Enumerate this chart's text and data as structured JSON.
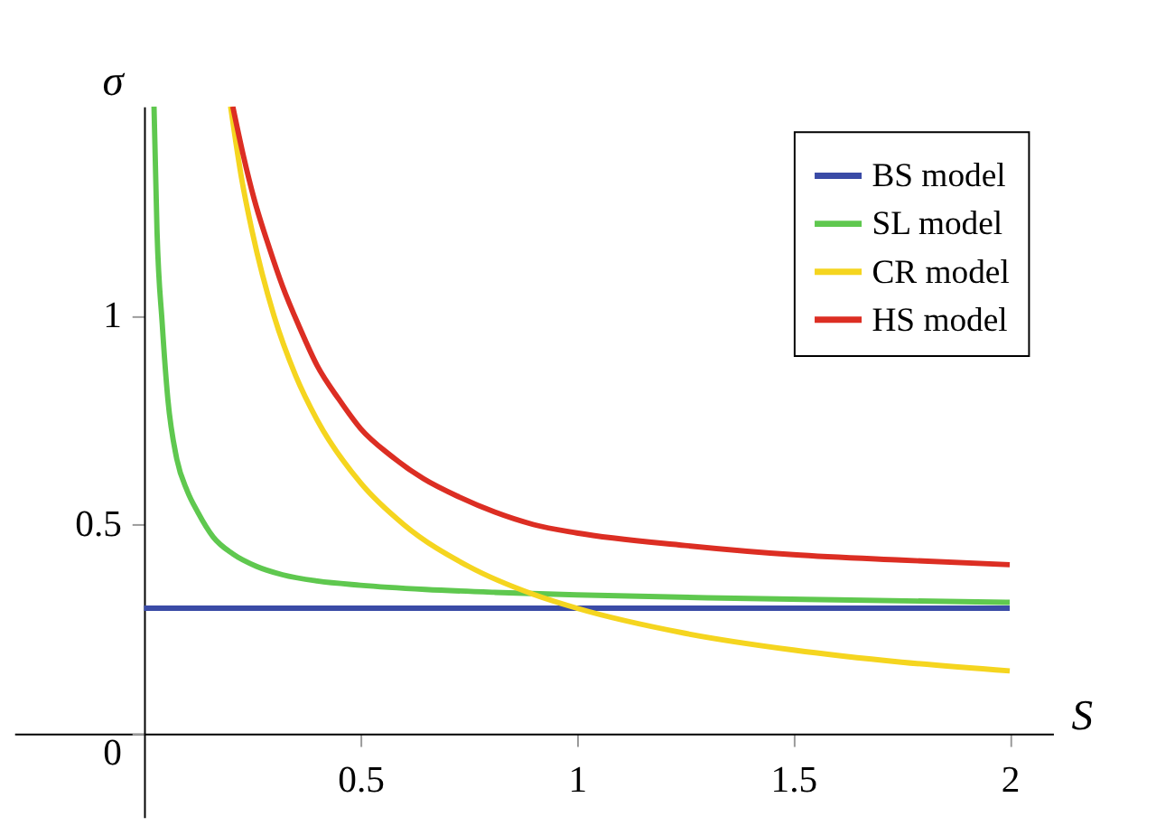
{
  "chart_data": {
    "type": "line",
    "xlabel": "S",
    "ylabel": "σ",
    "xlim": [
      -0.3,
      2.1
    ],
    "ylim": [
      -0.2,
      1.5
    ],
    "xticks": [
      0.5,
      1,
      1.5,
      2
    ],
    "yticks": [
      {
        "value": 0,
        "label": "0"
      },
      0.5,
      1
    ],
    "grid": false,
    "legend": "top right",
    "line_style": "solid",
    "marker": "none",
    "series": [
      {
        "name": "BS model",
        "color": "#3a4ba6",
        "x": [
          0,
          2
        ],
        "values": [
          0.3,
          0.3
        ]
      },
      {
        "name": "SL model",
        "color": "#5fc84f",
        "x": [
          0.023,
          0.03,
          0.042,
          0.055,
          0.075,
          0.1,
          0.124,
          0.16,
          0.205,
          0.26,
          0.32,
          0.4,
          0.5,
          0.65,
          0.81,
          1,
          1.3,
          1.6,
          2
        ],
        "values": [
          1.5,
          1.2,
          0.98,
          0.8,
          0.66,
          0.58,
          0.53,
          0.47,
          0.43,
          0.4,
          0.38,
          0.365,
          0.355,
          0.345,
          0.338,
          0.332,
          0.325,
          0.32,
          0.314
        ]
      },
      {
        "name": "CR model",
        "color": "#f5d51f",
        "x": [
          0.2,
          0.225,
          0.25,
          0.3,
          0.35,
          0.4,
          0.5,
          0.6,
          0.75,
          0.9,
          1,
          1.25,
          1.5,
          1.75,
          2
        ],
        "values": [
          1.5,
          1.33,
          1.2,
          1.0,
          0.857,
          0.75,
          0.6,
          0.5,
          0.4,
          0.333,
          0.3,
          0.24,
          0.2,
          0.171,
          0.15
        ]
      },
      {
        "name": "HS model",
        "color": "#dc2e23",
        "x": [
          0.205,
          0.23,
          0.254,
          0.29,
          0.32,
          0.36,
          0.4,
          0.45,
          0.5,
          0.57,
          0.645,
          0.73,
          0.81,
          0.9,
          1,
          1.25,
          1.5,
          1.75,
          2
        ],
        "values": [
          1.5,
          1.38,
          1.28,
          1.16,
          1.07,
          0.97,
          0.88,
          0.8,
          0.73,
          0.665,
          0.61,
          0.565,
          0.53,
          0.5,
          0.48,
          0.45,
          0.428,
          0.415,
          0.404
        ]
      }
    ]
  }
}
